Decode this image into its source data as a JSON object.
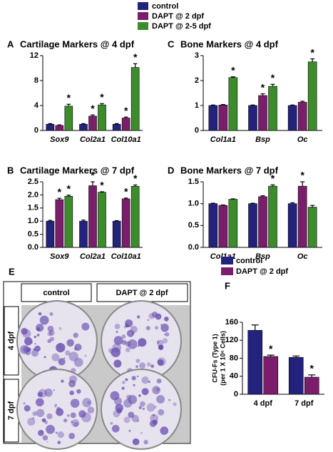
{
  "legend": [
    {
      "name": "control",
      "color": "#23237e"
    },
    {
      "name": "DAPT @ 2 dpf",
      "color": "#7a1e6c"
    },
    {
      "name": "DAPT @ 2-5 dpf",
      "color": "#3c8c2c"
    }
  ],
  "chart_data": [
    {
      "type": "bar",
      "panel": "A",
      "title": "Cartilage Markers @ 4 dpf",
      "categories": [
        "Sox9",
        "Col2a1",
        "Col10a1"
      ],
      "ylim": [
        0,
        12
      ],
      "yticks": [
        0,
        4,
        8,
        12
      ],
      "series": [
        {
          "color": "#23237e",
          "values": [
            1,
            1,
            1
          ],
          "errors": [
            0.1,
            0.1,
            0.1
          ],
          "annotations": [
            null,
            null,
            null
          ]
        },
        {
          "color": "#7a1e6c",
          "values": [
            0.8,
            2.3,
            2.0
          ],
          "errors": [
            0.1,
            0.2,
            0.15
          ],
          "annotations": [
            null,
            "*",
            "*"
          ]
        },
        {
          "color": "#3c8c2c",
          "values": [
            3.9,
            4.1,
            10.1
          ],
          "errors": [
            0.3,
            0.2,
            0.6
          ],
          "annotations": [
            "*",
            "*",
            "*"
          ]
        }
      ]
    },
    {
      "type": "bar",
      "panel": "B",
      "title": "Cartilage Markers @ 7 dpf",
      "categories": [
        "Sox9",
        "Col2a1",
        "Col10a1"
      ],
      "ylim": [
        0,
        2.5
      ],
      "yticks": [
        {
          "value": 0,
          "label": "0.0"
        },
        0.5,
        {
          "value": 1,
          "label": "1.0"
        },
        1.5,
        {
          "value": 2,
          "label": "2.0"
        },
        2.5
      ],
      "series": [
        {
          "color": "#23237e",
          "values": [
            1.0,
            1.0,
            1.0
          ],
          "errors": [
            0.03,
            0.04,
            0.02
          ],
          "annotations": [
            null,
            null,
            null
          ]
        },
        {
          "color": "#7a1e6c",
          "values": [
            1.82,
            2.35,
            1.85
          ],
          "errors": [
            0.05,
            0.15,
            0.03
          ],
          "annotations": [
            "*",
            "*",
            "*"
          ]
        },
        {
          "color": "#3c8c2c",
          "values": [
            1.95,
            2.1,
            2.33
          ],
          "errors": [
            0.04,
            0.02,
            0.05
          ],
          "annotations": [
            "*",
            "*",
            "*"
          ]
        }
      ]
    },
    {
      "type": "bar",
      "panel": "C",
      "title": "Bone Markers @ 4 dpf",
      "categories": [
        "Col1a1",
        "Bsp",
        "Oc"
      ],
      "ylim": [
        0,
        3
      ],
      "yticks": [
        0,
        1,
        2,
        3
      ],
      "series": [
        {
          "color": "#23237e",
          "values": [
            1,
            1,
            1
          ],
          "errors": [
            0.02,
            0.02,
            0.02
          ],
          "annotations": [
            null,
            null,
            null
          ]
        },
        {
          "color": "#7a1e6c",
          "values": [
            1.02,
            1.4,
            1.13
          ],
          "errors": [
            0.02,
            0.07,
            0.04
          ],
          "annotations": [
            null,
            "*",
            null
          ]
        },
        {
          "color": "#3c8c2c",
          "values": [
            2.12,
            1.77,
            2.75
          ],
          "errors": [
            0.03,
            0.08,
            0.12
          ],
          "annotations": [
            "*",
            "*",
            "*"
          ]
        }
      ]
    },
    {
      "type": "bar",
      "panel": "D",
      "title": "Bone Markers @ 7 dpf",
      "categories": [
        "Col1a1",
        "Bsp",
        "Oc"
      ],
      "ylim": [
        0,
        1.5
      ],
      "yticks": [
        {
          "value": 0,
          "label": "0.0"
        },
        0.5,
        {
          "value": 1,
          "label": "1.0"
        },
        1.5
      ],
      "series": [
        {
          "color": "#23237e",
          "values": [
            1.0,
            1.0,
            1.0
          ],
          "errors": [
            0.01,
            0.01,
            0.02
          ],
          "annotations": [
            null,
            null,
            null
          ]
        },
        {
          "color": "#7a1e6c",
          "values": [
            0.96,
            1.16,
            1.4
          ],
          "errors": [
            0.01,
            0.02,
            0.1
          ],
          "annotations": [
            null,
            null,
            "*"
          ]
        },
        {
          "color": "#3c8c2c",
          "values": [
            1.1,
            1.4,
            0.92
          ],
          "errors": [
            0.01,
            0.03,
            0.04
          ],
          "annotations": [
            null,
            "*",
            null
          ]
        }
      ]
    },
    {
      "type": "bar",
      "panel": "F",
      "ylabel": [
        "CFU-Fs (Type 1)",
        "(per 1 X 10⁶ Cells)"
      ],
      "categories": [
        "4 dpf",
        "7 dpf"
      ],
      "ylim": [
        0,
        160
      ],
      "yticks": [
        0,
        40,
        80,
        120,
        160
      ],
      "series": [
        {
          "name": "control",
          "color": "#23237e",
          "values": [
            142,
            82
          ],
          "errors": [
            12,
            3
          ],
          "annotations": [
            null,
            null
          ]
        },
        {
          "name": "DAPT @ 2 dpf",
          "color": "#7a1e6c",
          "values": [
            84,
            38
          ],
          "errors": [
            3,
            5
          ],
          "annotations": [
            "*",
            "*"
          ]
        }
      ]
    }
  ],
  "plates": {
    "panel": "E",
    "columns": [
      "control",
      "DAPT @ 2 dpf"
    ],
    "rows": [
      "4 dpf",
      "7 dpf"
    ]
  }
}
